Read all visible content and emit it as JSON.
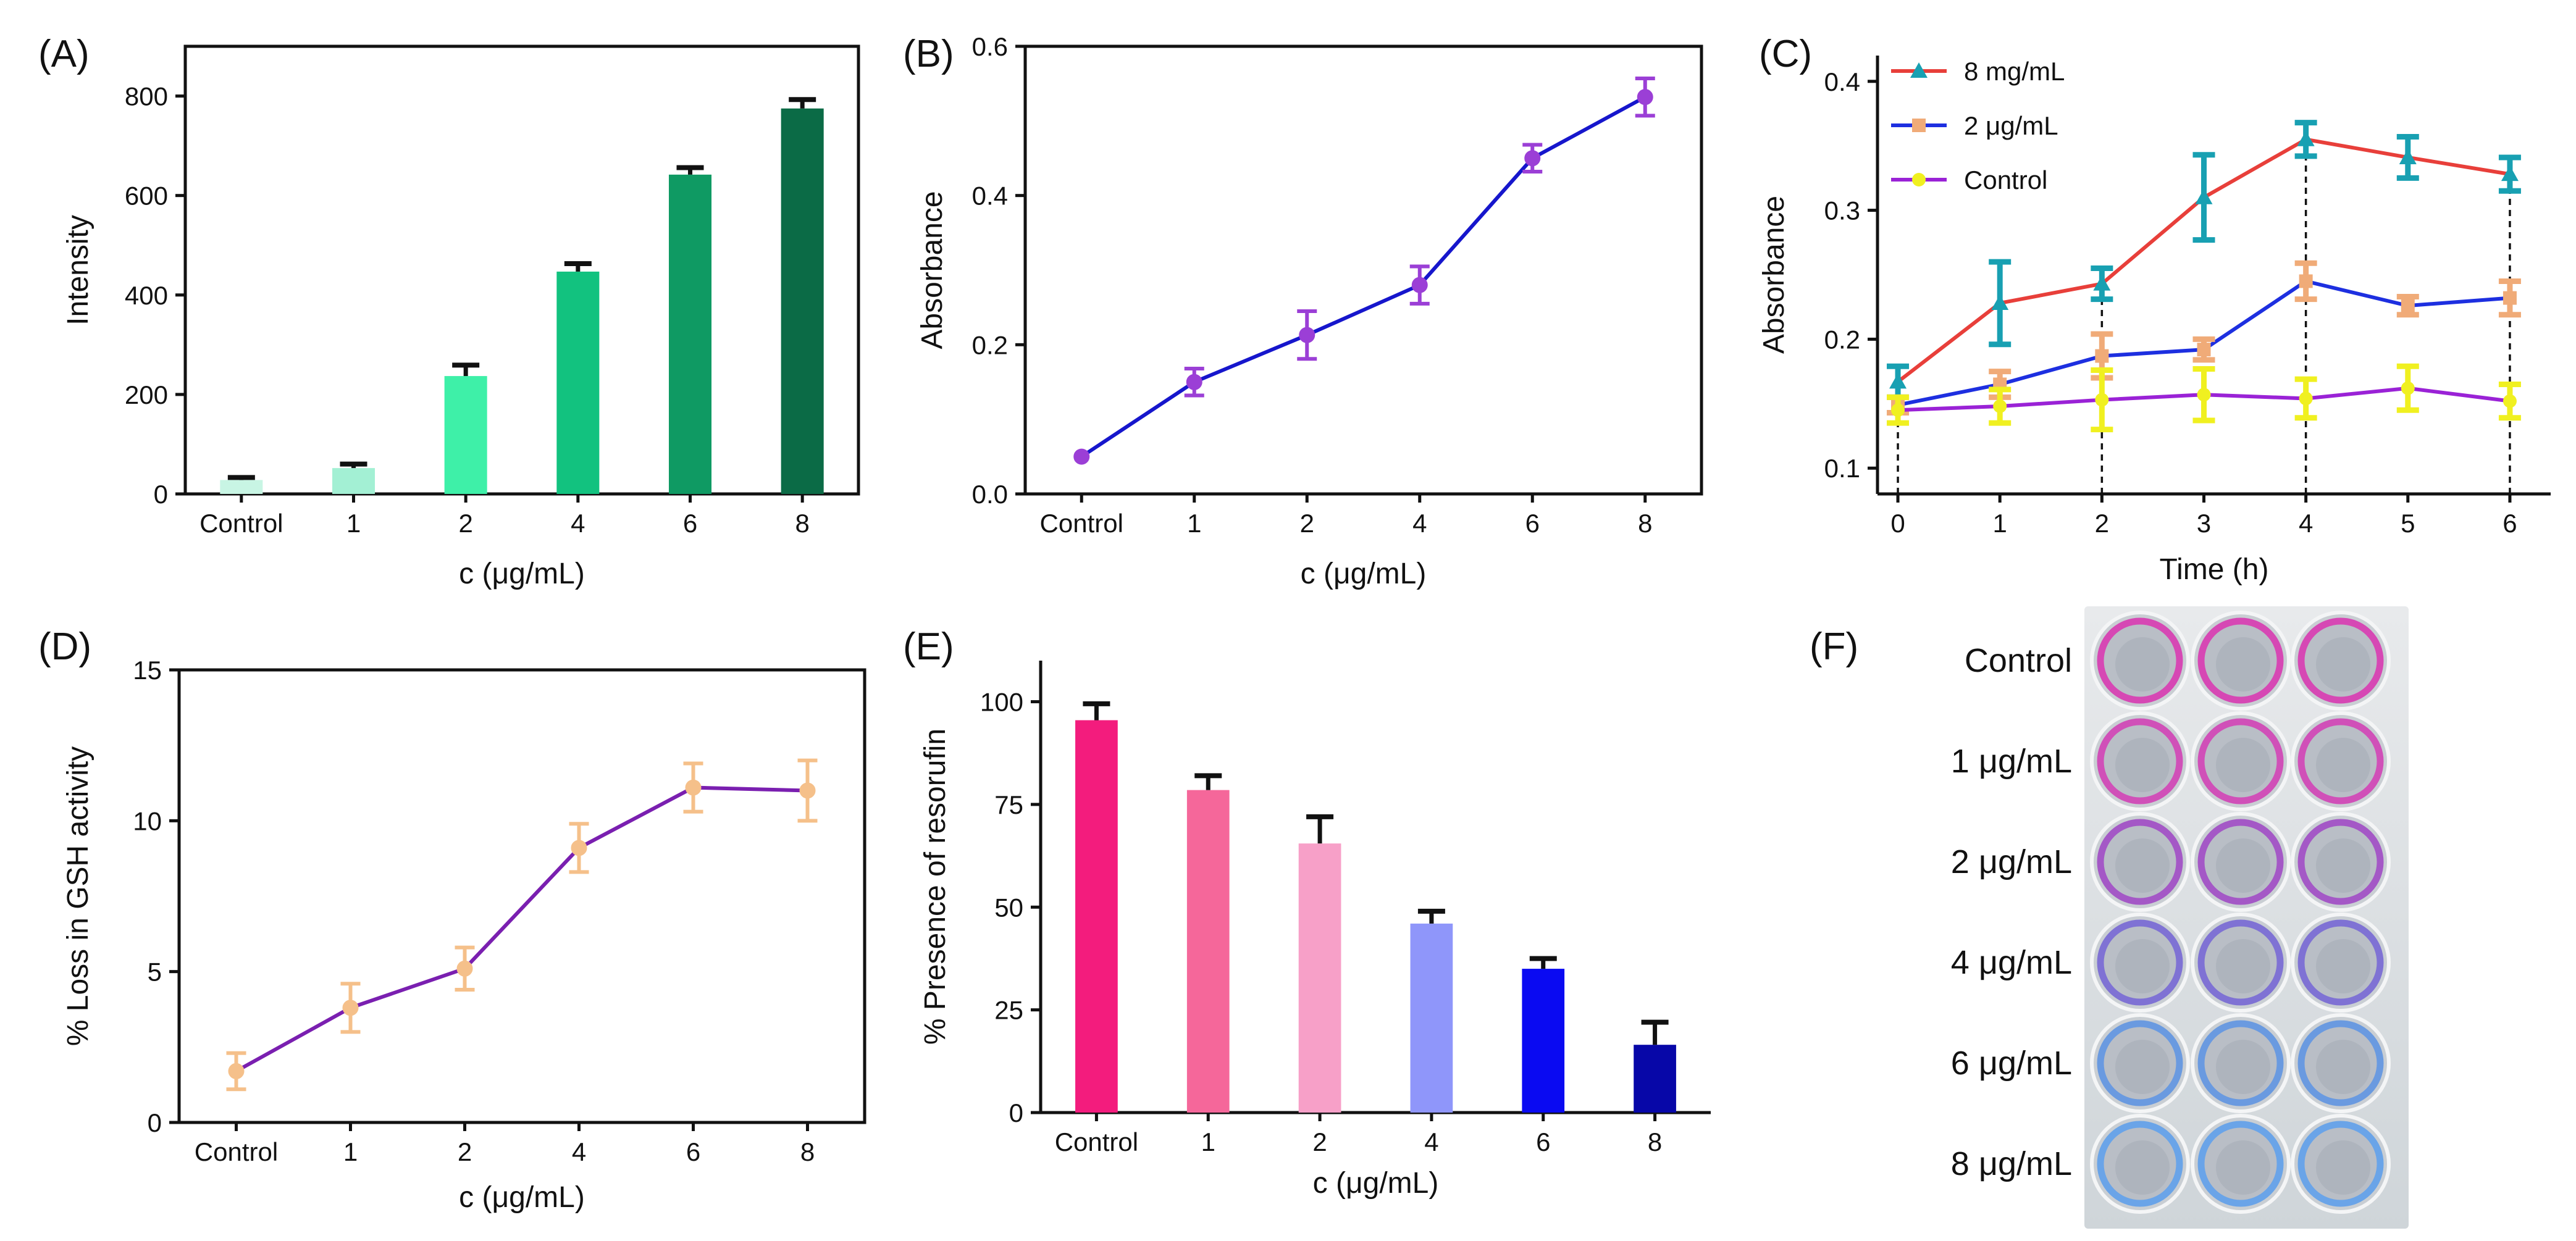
{
  "panel_labels": [
    "(A)",
    "(B)",
    "(C)",
    "(D)",
    "(E)",
    "(F)"
  ],
  "colors": {
    "axis": "#111111",
    "errbar": "#111111",
    "A_bars": [
      "#c8f5e4",
      "#a3f0d4",
      "#3ef0a8",
      "#12c27f",
      "#0f9a63",
      "#0b6b46"
    ],
    "B_line": "#1616cc",
    "B_marker": "#9b3fd6",
    "C_8mg": "#e83f3a",
    "C_8mg_err": "#18a0b2",
    "C_2ug": "#1d2fe0",
    "C_2ug_err": "#f0ab78",
    "C_ctrl": "#9a22d6",
    "C_ctrl_err": "#f0f020",
    "D_line": "#7a1fb0",
    "D_err": "#f5c08a",
    "E_bars": [
      "#f31c7d",
      "#f5679a",
      "#f7a0c8",
      "#8f96fa",
      "#0a0af2",
      "#0707a8"
    ],
    "plate_bg": "#d9dde0",
    "well_rings": [
      "#d648b4",
      "#d050b8",
      "#a458c6",
      "#7f72d4",
      "#6a9ae0",
      "#6aa4e8"
    ]
  },
  "chart_data": [
    {
      "id": "A",
      "type": "bar",
      "title": "",
      "categories": [
        "Control",
        "1",
        "2",
        "4",
        "6",
        "8"
      ],
      "values": [
        28,
        52,
        237,
        447,
        642,
        775
      ],
      "errors": [
        5,
        8,
        22,
        16,
        14,
        18
      ],
      "xlabel": "c (μg/mL)",
      "ylabel": "Intensity",
      "ylim": [
        0,
        900
      ],
      "yticks": [
        0,
        200,
        400,
        600,
        800
      ],
      "grid": false
    },
    {
      "id": "B",
      "type": "line",
      "title": "",
      "categories": [
        "Control",
        "1",
        "2",
        "4",
        "6",
        "8"
      ],
      "values": [
        0.05,
        0.15,
        0.213,
        0.28,
        0.45,
        0.532
      ],
      "errors": [
        0,
        0.018,
        0.032,
        0.025,
        0.018,
        0.025
      ],
      "xlabel": "c (μg/mL)",
      "ylabel": "Absorbance",
      "ylim": [
        0,
        0.6
      ],
      "yticks": [
        "0.0",
        "0.2",
        "0.4",
        "0.6"
      ],
      "grid": false
    },
    {
      "id": "C",
      "type": "line",
      "title": "",
      "x": [
        0,
        1,
        2,
        3,
        4,
        5,
        6
      ],
      "xlabel": "Time (h)",
      "ylabel": "Absorbance",
      "xlim": [
        -0.2,
        6.4
      ],
      "ylim": [
        0.08,
        0.42
      ],
      "yticks": [
        "0.1",
        "0.2",
        "0.3",
        "0.4"
      ],
      "xticks": [
        "0",
        "1",
        "2",
        "3",
        "4",
        "5",
        "6"
      ],
      "vlines": [
        0,
        2,
        4,
        6
      ],
      "series": [
        {
          "name": "8 mg/mL",
          "marker": "triangle",
          "values": [
            0.167,
            0.228,
            0.243,
            0.31,
            0.355,
            0.341,
            0.328
          ],
          "errors": [
            0.012,
            0.032,
            0.012,
            0.033,
            0.013,
            0.016,
            0.013
          ]
        },
        {
          "name": "2 μg/mL",
          "marker": "square",
          "values": [
            0.149,
            0.165,
            0.187,
            0.192,
            0.245,
            0.226,
            0.232
          ],
          "errors": [
            0.006,
            0.01,
            0.017,
            0.008,
            0.014,
            0.007,
            0.013
          ]
        },
        {
          "name": "Control",
          "marker": "circle",
          "values": [
            0.145,
            0.148,
            0.153,
            0.157,
            0.154,
            0.162,
            0.152
          ],
          "errors": [
            0.01,
            0.013,
            0.023,
            0.02,
            0.015,
            0.017,
            0.013
          ]
        }
      ],
      "legend_position": "top-left"
    },
    {
      "id": "D",
      "type": "line",
      "title": "",
      "categories": [
        "Control",
        "1",
        "2",
        "4",
        "6",
        "8"
      ],
      "values": [
        1.7,
        3.8,
        5.1,
        9.1,
        11.1,
        11.0
      ],
      "errors": [
        0.6,
        0.8,
        0.7,
        0.8,
        0.8,
        1.0
      ],
      "xlabel": "c (μg/mL)",
      "ylabel": "% Loss in GSH activity",
      "ylim": [
        0,
        15
      ],
      "yticks": [
        "0",
        "5",
        "10",
        "15"
      ],
      "grid": false
    },
    {
      "id": "E",
      "type": "bar",
      "title": "",
      "categories": [
        "Control",
        "1",
        "2",
        "4",
        "6",
        "8"
      ],
      "values": [
        95.5,
        78.5,
        65.5,
        46,
        35,
        16.5
      ],
      "errors": [
        4,
        3.5,
        6.5,
        3,
        2.5,
        5.5
      ],
      "xlabel": "c (μg/mL)",
      "ylabel": "% Presence of resorufin",
      "ylim": [
        0,
        110
      ],
      "yticks": [
        "0",
        "25",
        "50",
        "75",
        "100"
      ],
      "grid": false
    }
  ],
  "plate": {
    "row_labels": [
      "Control",
      "1 μg/mL",
      "2 μg/mL",
      "4 μg/mL",
      "6 μg/mL",
      "8 μg/mL"
    ],
    "columns": 3
  }
}
